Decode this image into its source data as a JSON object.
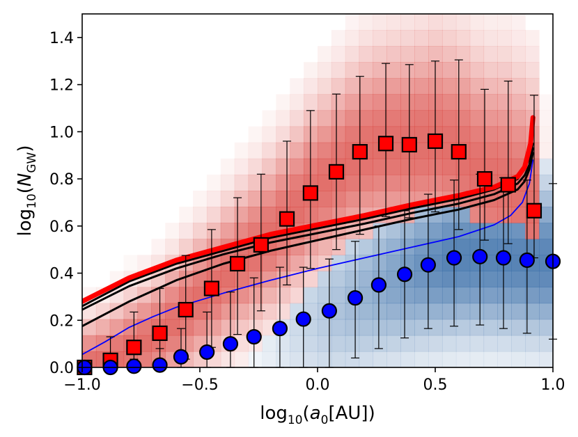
{
  "chart_data": {
    "type": "scatter",
    "xlim": [
      -1.0,
      1.0
    ],
    "ylim": [
      0.0,
      1.5
    ],
    "x_ticks": [
      -1.0,
      -0.5,
      0.0,
      0.5,
      1.0
    ],
    "x_tick_labels": [
      "−1.0",
      "−0.5",
      "0.0",
      "0.5",
      "1.0"
    ],
    "y_ticks": [
      0.0,
      0.2,
      0.4,
      0.6,
      0.8,
      1.0,
      1.2,
      1.4
    ],
    "y_tick_labels": [
      "0.0",
      "0.2",
      "0.4",
      "0.6",
      "0.8",
      "1.0",
      "1.2",
      "1.4"
    ],
    "xlabel": {
      "prefix": "log",
      "sub": "10",
      "open": "(",
      "italic": "a",
      "italic_sub": "0",
      "rest": "[AU])"
    },
    "ylabel": {
      "prefix": "log",
      "sub": "10",
      "open": "(",
      "italic": "N",
      "italic_sub": "GW",
      "rest": ")"
    },
    "colors": {
      "red": "#ff0000",
      "blue": "#0000ff",
      "black": "#000000",
      "red_map": "#d8403a",
      "blue_map": "#3a6ea8"
    },
    "series": [
      {
        "name": "red squares",
        "marker": "square",
        "color": "#ff0000",
        "x": [
          -0.99,
          -0.88,
          -0.78,
          -0.67,
          -0.56,
          -0.45,
          -0.34,
          -0.24,
          -0.13,
          -0.03,
          0.08,
          0.18,
          0.29,
          0.39,
          0.5,
          0.6,
          0.71,
          0.81,
          0.92
        ],
        "y": [
          0.0,
          0.03,
          0.085,
          0.145,
          0.245,
          0.335,
          0.44,
          0.52,
          0.63,
          0.74,
          0.83,
          0.915,
          0.95,
          0.945,
          0.96,
          0.915,
          0.8,
          0.775,
          0.665
        ],
        "err_lo": [
          0.0,
          0.03,
          0.085,
          0.135,
          0.21,
          0.25,
          0.3,
          0.28,
          0.28,
          0.32,
          0.33,
          0.35,
          0.31,
          0.31,
          0.3,
          0.33,
          0.26,
          0.25,
          0.2
        ],
        "err_hi": [
          0.0,
          0.1,
          0.15,
          0.19,
          0.23,
          0.25,
          0.28,
          0.3,
          0.33,
          0.35,
          0.33,
          0.32,
          0.34,
          0.34,
          0.34,
          0.39,
          0.38,
          0.44,
          0.49
        ]
      },
      {
        "name": "blue circles",
        "marker": "circle",
        "color": "#0000ff",
        "x": [
          -0.99,
          -0.88,
          -0.78,
          -0.67,
          -0.58,
          -0.47,
          -0.37,
          -0.27,
          -0.16,
          -0.06,
          0.05,
          0.16,
          0.26,
          0.37,
          0.47,
          0.58,
          0.69,
          0.79,
          0.89,
          1.0
        ],
        "y": [
          0.0,
          0.0,
          0.005,
          0.01,
          0.045,
          0.065,
          0.1,
          0.13,
          0.165,
          0.205,
          0.24,
          0.295,
          0.35,
          0.395,
          0.435,
          0.465,
          0.47,
          0.465,
          0.455,
          0.45
        ],
        "err_lo": [
          0.0,
          0.0,
          0.005,
          0.01,
          0.045,
          0.065,
          0.1,
          0.13,
          0.165,
          0.205,
          0.24,
          0.255,
          0.27,
          0.27,
          0.27,
          0.29,
          0.29,
          0.3,
          0.31,
          0.33
        ],
        "err_hi": [
          0.0,
          0.0,
          0.03,
          0.07,
          0.12,
          0.17,
          0.22,
          0.25,
          0.26,
          0.22,
          0.22,
          0.24,
          0.25,
          0.27,
          0.3,
          0.33,
          0.35,
          0.34,
          0.34,
          0.33
        ]
      }
    ],
    "lines": [
      {
        "name": "red curve",
        "color": "#ff0000",
        "width": 7,
        "x": [
          -1.0,
          -0.8,
          -0.6,
          -0.4,
          -0.2,
          0.0,
          0.2,
          0.4,
          0.6,
          0.75,
          0.85,
          0.88,
          0.905,
          0.915
        ],
        "y": [
          0.28,
          0.38,
          0.455,
          0.51,
          0.565,
          0.605,
          0.645,
          0.69,
          0.73,
          0.765,
          0.81,
          0.85,
          0.95,
          1.06
        ]
      },
      {
        "name": "black curve 1",
        "color": "#000000",
        "width": 3,
        "x": [
          -1.0,
          -0.8,
          -0.6,
          -0.4,
          -0.2,
          0.0,
          0.2,
          0.4,
          0.6,
          0.75,
          0.85,
          0.88,
          0.9,
          0.915
        ],
        "y": [
          0.26,
          0.365,
          0.44,
          0.495,
          0.55,
          0.59,
          0.63,
          0.675,
          0.715,
          0.755,
          0.8,
          0.84,
          0.89,
          0.95
        ]
      },
      {
        "name": "black curve 2",
        "color": "#000000",
        "width": 3,
        "x": [
          -1.0,
          -0.8,
          -0.6,
          -0.4,
          -0.2,
          0.0,
          0.2,
          0.4,
          0.6,
          0.75,
          0.85,
          0.88,
          0.9,
          0.915
        ],
        "y": [
          0.245,
          0.345,
          0.42,
          0.48,
          0.53,
          0.57,
          0.61,
          0.655,
          0.695,
          0.735,
          0.78,
          0.815,
          0.86,
          0.93
        ]
      },
      {
        "name": "black curve 3",
        "color": "#000000",
        "width": 3,
        "x": [
          -1.0,
          -0.8,
          -0.6,
          -0.4,
          -0.2,
          0.0,
          0.2,
          0.4,
          0.6,
          0.75,
          0.85,
          0.88,
          0.9,
          0.915
        ],
        "y": [
          0.175,
          0.28,
          0.37,
          0.44,
          0.495,
          0.54,
          0.585,
          0.63,
          0.67,
          0.71,
          0.755,
          0.79,
          0.84,
          0.91
        ]
      },
      {
        "name": "blue curve",
        "color": "#0000ff",
        "width": 1.8,
        "x": [
          -1.0,
          -0.9,
          -0.8,
          -0.7,
          -0.6,
          -0.4,
          -0.2,
          0.0,
          0.2,
          0.4,
          0.6,
          0.75,
          0.82,
          0.87,
          0.9,
          0.915
        ],
        "y": [
          0.055,
          0.11,
          0.17,
          0.215,
          0.255,
          0.315,
          0.37,
          0.42,
          0.465,
          0.51,
          0.555,
          0.605,
          0.645,
          0.7,
          0.78,
          0.88
        ]
      }
    ]
  }
}
